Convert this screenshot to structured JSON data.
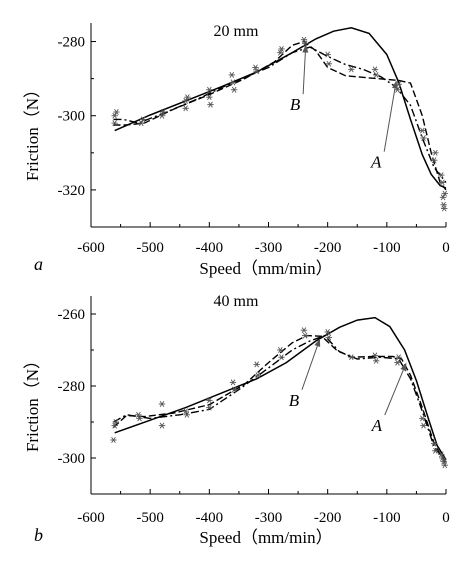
{
  "chart_data": [
    {
      "type": "line",
      "title": "20 mm",
      "panel_label": "a",
      "xlabel": "Speed（mm/min）",
      "ylabel": "Friction（N）",
      "xlim": [
        -600,
        0
      ],
      "ylim": [
        -330,
        -275
      ],
      "x_ticks": [
        -600,
        -500,
        -400,
        -300,
        -200,
        -100,
        0
      ],
      "x_tick_labels": [
        "-600",
        "-500",
        "-400",
        "-300",
        "-200",
        "-100",
        "0"
      ],
      "y_ticks": [
        -280,
        -300,
        -320
      ],
      "y_tick_labels": [
        "-280",
        "-300",
        "-320"
      ],
      "grid": false,
      "series": [
        {
          "style": "solid",
          "points": [
            [
              -560,
              -304
            ],
            [
              -500,
              -299.8
            ],
            [
              -440,
              -296
            ],
            [
              -380,
              -292.2
            ],
            [
              -320,
              -288.2
            ],
            [
              -260,
              -283
            ],
            [
              -220,
              -279.3
            ],
            [
              -190,
              -277.2
            ],
            [
              -160,
              -276.3
            ],
            [
              -130,
              -277.8
            ],
            [
              -100,
              -283.5
            ],
            [
              -80,
              -291
            ],
            [
              -60,
              -301
            ],
            [
              -40,
              -310.5
            ],
            [
              -25,
              -315.8
            ],
            [
              -10,
              -318.8
            ],
            [
              0,
              -319.5
            ]
          ]
        },
        {
          "style": "dash",
          "points": [
            [
              -562,
              -302.5
            ],
            [
              -540,
              -302.5
            ],
            [
              -510,
              -302
            ],
            [
              -460,
              -298.2
            ],
            [
              -400,
              -294.3
            ],
            [
              -340,
              -290
            ],
            [
              -290,
              -285.5
            ],
            [
              -260,
              -281
            ],
            [
              -240,
              -280
            ],
            [
              -220,
              -282.5
            ],
            [
              -200,
              -287
            ],
            [
              -170,
              -289.2
            ],
            [
              -130,
              -289.8
            ],
            [
              -100,
              -290.2
            ],
            [
              -80,
              -290.5
            ],
            [
              -60,
              -291.2
            ],
            [
              -40,
              -300
            ],
            [
              -25,
              -310
            ],
            [
              -10,
              -318
            ],
            [
              0,
              -320
            ]
          ]
        },
        {
          "style": "dashdot",
          "points": [
            [
              -562,
              -301
            ],
            [
              -545,
              -301
            ],
            [
              -520,
              -302
            ],
            [
              -480,
              -299.5
            ],
            [
              -420,
              -295.5
            ],
            [
              -360,
              -291
            ],
            [
              -300,
              -287
            ],
            [
              -260,
              -283
            ],
            [
              -230,
              -281.5
            ],
            [
              -200,
              -284
            ],
            [
              -170,
              -286.2
            ],
            [
              -140,
              -287.5
            ],
            [
              -110,
              -289.5
            ],
            [
              -85,
              -292.2
            ],
            [
              -60,
              -297.2
            ],
            [
              -40,
              -306
            ],
            [
              -20,
              -314
            ],
            [
              0,
              -318
            ]
          ]
        }
      ],
      "scatter": [
        [
          -560,
          -300
        ],
        [
          -560,
          -302
        ],
        [
          -557,
          -299
        ],
        [
          -515,
          -302
        ],
        [
          -512,
          -301
        ],
        [
          -480,
          -300
        ],
        [
          -478,
          -299
        ],
        [
          -440,
          -296
        ],
        [
          -440,
          -298
        ],
        [
          -437,
          -295
        ],
        [
          -400,
          -293
        ],
        [
          -400,
          -295
        ],
        [
          -398,
          -297
        ],
        [
          -360,
          -291
        ],
        [
          -362,
          -289
        ],
        [
          -358,
          -293
        ],
        [
          -320,
          -288
        ],
        [
          -322,
          -287
        ],
        [
          -280,
          -283
        ],
        [
          -278,
          -282
        ],
        [
          -240,
          -279.5
        ],
        [
          -238,
          -280.5
        ],
        [
          -200,
          -283.5
        ],
        [
          -198,
          -286
        ],
        [
          -160,
          -287.5
        ],
        [
          -120,
          -287.5
        ],
        [
          -118,
          -289
        ],
        [
          -80,
          -291.5
        ],
        [
          -82,
          -293
        ],
        [
          -40,
          -304
        ],
        [
          -38,
          -306
        ],
        [
          -20,
          -312
        ],
        [
          -18,
          -310
        ],
        [
          -6,
          -318
        ],
        [
          -5,
          -322
        ],
        [
          -4,
          -324
        ],
        [
          -3,
          -325
        ],
        [
          -2,
          -321
        ],
        [
          -8,
          -316
        ]
      ],
      "annotations": [
        {
          "text": "B",
          "label_at": [
            -255,
            -298.5
          ],
          "points_to": [
            -237,
            -280.8
          ]
        },
        {
          "text": "A",
          "label_at": [
            -118,
            -314
          ],
          "points_to": [
            -84,
            -290.5
          ]
        }
      ]
    },
    {
      "type": "line",
      "title": "40 mm",
      "panel_label": "b",
      "xlabel": "Speed（mm/min）",
      "ylabel": "Friction（N）",
      "xlim": [
        -600,
        0
      ],
      "ylim": [
        -310,
        -255
      ],
      "x_ticks": [
        -600,
        -500,
        -400,
        -300,
        -200,
        -100,
        0
      ],
      "x_tick_labels": [
        "-600",
        "-500",
        "-400",
        "-300",
        "-200",
        "-100",
        "0"
      ],
      "y_ticks": [
        -260,
        -280,
        -300
      ],
      "y_tick_labels": [
        "-260",
        "-280",
        "-300"
      ],
      "grid": false,
      "series": [
        {
          "style": "solid",
          "points": [
            [
              -560,
              -293
            ],
            [
              -500,
              -289.5
            ],
            [
              -440,
              -286
            ],
            [
              -380,
              -282
            ],
            [
              -320,
              -278
            ],
            [
              -270,
              -273.5
            ],
            [
              -220,
              -267.5
            ],
            [
              -180,
              -263.7
            ],
            [
              -150,
              -261.7
            ],
            [
              -120,
              -261
            ],
            [
              -95,
              -263.5
            ],
            [
              -70,
              -270
            ],
            [
              -50,
              -278.5
            ],
            [
              -30,
              -289
            ],
            [
              -15,
              -296.5
            ],
            [
              0,
              -300.5
            ]
          ]
        },
        {
          "style": "dash",
          "points": [
            [
              -562,
              -291.5
            ],
            [
              -540,
              -288.2
            ],
            [
              -510,
              -288.5
            ],
            [
              -460,
              -287.5
            ],
            [
              -400,
              -285.2
            ],
            [
              -340,
              -279.5
            ],
            [
              -300,
              -273.5
            ],
            [
              -260,
              -268
            ],
            [
              -235,
              -266
            ],
            [
              -210,
              -266.2
            ],
            [
              -185,
              -270
            ],
            [
              -160,
              -272
            ],
            [
              -120,
              -271.8
            ],
            [
              -90,
              -271.8
            ],
            [
              -75,
              -272.5
            ],
            [
              -60,
              -277
            ],
            [
              -40,
              -286
            ],
            [
              -20,
              -296
            ],
            [
              0,
              -301.5
            ]
          ]
        },
        {
          "style": "dashdot",
          "points": [
            [
              -562,
              -290
            ],
            [
              -540,
              -288
            ],
            [
              -500,
              -289
            ],
            [
              -450,
              -288
            ],
            [
              -400,
              -286.5
            ],
            [
              -350,
              -281
            ],
            [
              -300,
              -275
            ],
            [
              -260,
              -270
            ],
            [
              -230,
              -267.5
            ],
            [
              -205,
              -266
            ],
            [
              -180,
              -270.5
            ],
            [
              -150,
              -272.5
            ],
            [
              -110,
              -272
            ],
            [
              -80,
              -272.5
            ],
            [
              -60,
              -278
            ],
            [
              -40,
              -287
            ],
            [
              -20,
              -297
            ],
            [
              0,
              -301
            ]
          ]
        }
      ],
      "scatter": [
        [
          -562,
          -295
        ],
        [
          -560,
          -291
        ],
        [
          -558,
          -290
        ],
        [
          -520,
          -288
        ],
        [
          -518,
          -289
        ],
        [
          -480,
          -285
        ],
        [
          -480,
          -291
        ],
        [
          -440,
          -287
        ],
        [
          -438,
          -288
        ],
        [
          -400,
          -286
        ],
        [
          -400,
          -284
        ],
        [
          -360,
          -279
        ],
        [
          -358,
          -281
        ],
        [
          -320,
          -274
        ],
        [
          -318,
          -277
        ],
        [
          -280,
          -270
        ],
        [
          -278,
          -272
        ],
        [
          -240,
          -264.5
        ],
        [
          -238,
          -266
        ],
        [
          -200,
          -265
        ],
        [
          -198,
          -266.5
        ],
        [
          -160,
          -272
        ],
        [
          -120,
          -271.5
        ],
        [
          -118,
          -273
        ],
        [
          -80,
          -272
        ],
        [
          -82,
          -273.5
        ],
        [
          -40,
          -289
        ],
        [
          -38,
          -291
        ],
        [
          -20,
          -296
        ],
        [
          -18,
          -298
        ],
        [
          -6,
          -300
        ],
        [
          -4,
          -301
        ],
        [
          -2,
          -302
        ],
        [
          -8,
          -299
        ]
      ],
      "annotations": [
        {
          "text": "B",
          "label_at": [
            -257,
            -285.5
          ],
          "points_to": [
            -213,
            -266.8
          ]
        },
        {
          "text": "A",
          "label_at": [
            -117,
            -292.5
          ],
          "points_to": [
            -67,
            -273.5
          ]
        }
      ]
    }
  ]
}
